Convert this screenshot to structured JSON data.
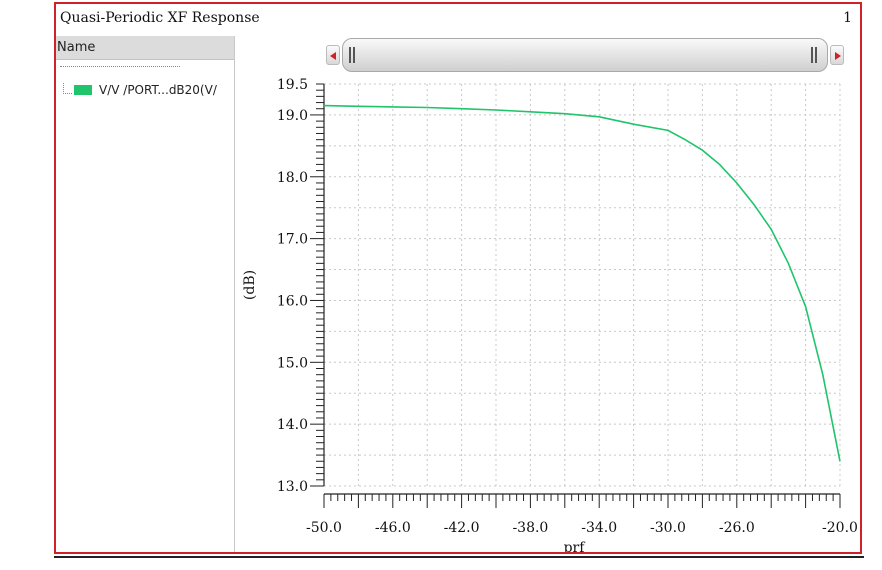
{
  "window": {
    "title": "Quasi-Periodic XF Response",
    "subwindow_number": "1"
  },
  "legend": {
    "header": "Name",
    "entries": [
      {
        "label": "V/V /PORT...dB20(V/",
        "color": "#1fc46b"
      }
    ]
  },
  "chart_data": {
    "type": "line",
    "xlabel": "prf",
    "ylabel": "(dB)",
    "xlim": [
      -50.0,
      -20.0
    ],
    "ylim": [
      13.0,
      19.5
    ],
    "x_ticks": [
      "-50.0",
      "-46.0",
      "-42.0",
      "-38.0",
      "-34.0",
      "-30.0",
      "-26.0",
      "-20.0"
    ],
    "y_ticks": [
      "13.0",
      "14.0",
      "15.0",
      "16.0",
      "17.0",
      "18.0",
      "19.0",
      "19.5"
    ],
    "grid": true,
    "series": [
      {
        "color": "#1fc46b",
        "x": [
          -50,
          -48,
          -46,
          -44,
          -42,
          -40,
          -38,
          -36,
          -34,
          -32,
          -30,
          -29,
          -28,
          -27,
          -26,
          -25,
          -24,
          -23,
          -22,
          -21,
          -20
        ],
        "y": [
          19.15,
          19.14,
          19.13,
          19.12,
          19.1,
          19.08,
          19.05,
          19.02,
          18.97,
          18.85,
          18.75,
          18.6,
          18.43,
          18.2,
          17.9,
          17.55,
          17.15,
          16.6,
          15.9,
          14.8,
          13.4
        ]
      }
    ]
  }
}
